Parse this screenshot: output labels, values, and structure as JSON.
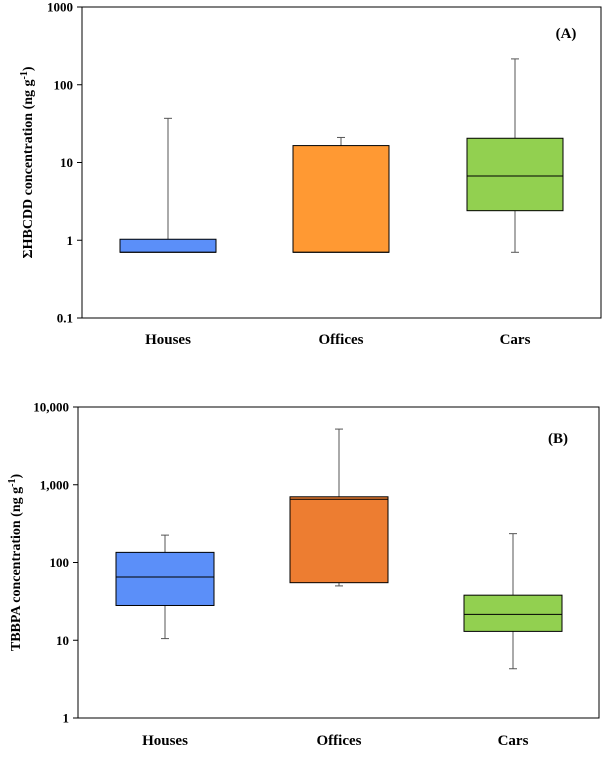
{
  "chart_data": [
    {
      "type": "box",
      "panel_label": "(A)",
      "ylabel": "ΣHBCDD concentration (ng g",
      "ylabel_sup": "-1",
      "ylabel_close": ")",
      "yscale": "log",
      "ylim": [
        0.1,
        1000
      ],
      "yticks": [
        {
          "value": 0.1,
          "label": "0.1"
        },
        {
          "value": 1,
          "label": "1"
        },
        {
          "value": 10,
          "label": "10"
        },
        {
          "value": 100,
          "label": "100"
        },
        {
          "value": 1000,
          "label": "1000"
        }
      ],
      "categories": [
        "Houses",
        "Offices",
        "Cars"
      ],
      "boxes": [
        {
          "category": "Houses",
          "min": 0.7,
          "q1": 0.7,
          "median": 0.7,
          "q3": 1.03,
          "max": 37,
          "color": "#5B8FF9"
        },
        {
          "category": "Offices",
          "min": 0.7,
          "q1": 0.7,
          "median": 0.7,
          "q3": 16.5,
          "max": 21,
          "color": "#FF9933"
        },
        {
          "category": "Cars",
          "min": 0.7,
          "q1": 2.4,
          "median": 6.7,
          "q3": 20.5,
          "max": 215,
          "color": "#92D050"
        }
      ]
    },
    {
      "type": "box",
      "panel_label": "(B)",
      "ylabel": "TBBPA concentration (ng g",
      "ylabel_sup": "-1",
      "ylabel_close": ")",
      "yscale": "log",
      "ylim": [
        1,
        10000
      ],
      "yticks": [
        {
          "value": 1,
          "label": "1"
        },
        {
          "value": 10,
          "label": "10"
        },
        {
          "value": 100,
          "label": "100"
        },
        {
          "value": 1000,
          "label": "1,000"
        },
        {
          "value": 10000,
          "label": "10,000"
        }
      ],
      "categories": [
        "Houses",
        "Offices",
        "Cars"
      ],
      "boxes": [
        {
          "category": "Houses",
          "min": 10.5,
          "q1": 28,
          "median": 65,
          "q3": 135,
          "max": 225,
          "color": "#5B8FF9"
        },
        {
          "category": "Offices",
          "min": 50,
          "q1": 55,
          "median": 650,
          "q3": 700,
          "max": 5200,
          "color": "#ED7D31"
        },
        {
          "category": "Cars",
          "min": 4.3,
          "q1": 13,
          "median": 21.5,
          "q3": 38,
          "max": 235,
          "color": "#92D050"
        }
      ]
    }
  ]
}
